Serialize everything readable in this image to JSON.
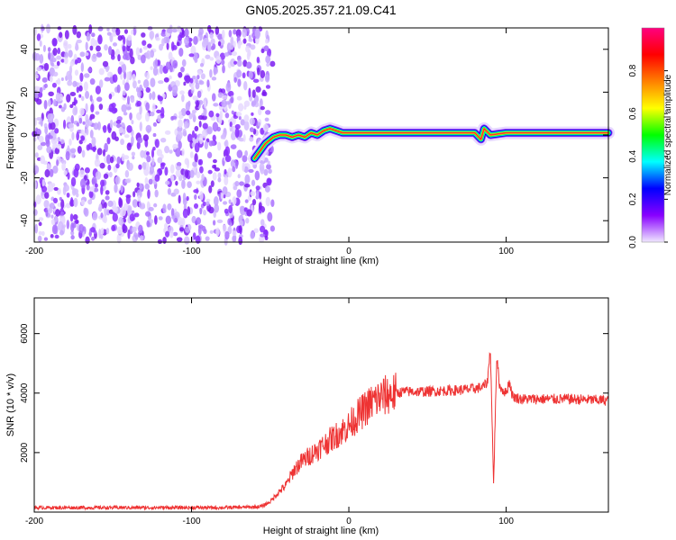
{
  "title": "GN05.2025.357.21.09.C41",
  "chart_data": [
    {
      "type": "heatmap",
      "xlabel": "Height of straight line (km)",
      "ylabel": "Frequency (Hz)",
      "xlim": [
        -200,
        165
      ],
      "ylim": [
        -50,
        50
      ],
      "xticks": [
        -200,
        -100,
        0,
        100
      ],
      "yticks": [
        -40,
        -20,
        0,
        20,
        40
      ],
      "noise_region_x": [
        -200,
        -53
      ],
      "ridge": {
        "x": [
          -60,
          -57,
          -53,
          -48,
          -44,
          -40,
          -36,
          -32,
          -28,
          -24,
          -20,
          -16,
          -12,
          -8,
          -4,
          0,
          10,
          20,
          40,
          60,
          80,
          84,
          86,
          90,
          100,
          110,
          130,
          165
        ],
        "y": [
          -11,
          -8,
          -4,
          -1,
          0,
          0,
          -1,
          0,
          -1,
          1,
          0,
          2,
          3,
          2,
          1,
          1,
          1,
          1,
          1,
          1,
          1,
          -2,
          3,
          0,
          1,
          1,
          1,
          1
        ]
      },
      "colorbar": {
        "label": "Normalized spectral amplitude",
        "range": [
          0,
          1
        ],
        "ticks": [
          "0.0",
          "0.2",
          "0.4",
          "0.6",
          "0.8"
        ],
        "tick_values": [
          0.0,
          0.2,
          0.4,
          0.6,
          0.8
        ],
        "colormap": [
          "#f0e8ff",
          "#8800ff",
          "#0000ff",
          "#00ffff",
          "#00ff00",
          "#ffff00",
          "#ff8000",
          "#ff0000",
          "#ff0080"
        ]
      }
    },
    {
      "type": "line",
      "xlabel": "Height of straight line (km)",
      "ylabel": "SNR (10 * v/v)",
      "xlim": [
        -200,
        165
      ],
      "ylim": [
        0,
        7200
      ],
      "xticks": [
        -200,
        -100,
        0,
        100
      ],
      "yticks": [
        2000,
        4000,
        6000
      ],
      "color": "#ee3333",
      "series": [
        {
          "x": [
            -200,
            -180,
            -160,
            -140,
            -120,
            -100,
            -80,
            -60,
            -55,
            -50,
            -45,
            -40,
            -35,
            -30,
            -25,
            -20,
            -15,
            -10,
            -5,
            0,
            5,
            10,
            15,
            20,
            25,
            30,
            35,
            40,
            50,
            60,
            70,
            80,
            85,
            88,
            90,
            92,
            94,
            96,
            100,
            102,
            104,
            106,
            110,
            120,
            140,
            165
          ],
          "y": [
            150,
            150,
            150,
            150,
            150,
            150,
            150,
            170,
            200,
            350,
            650,
            900,
            1400,
            1700,
            1900,
            2100,
            2300,
            2500,
            2700,
            2900,
            3200,
            3450,
            3700,
            3850,
            3950,
            4000,
            4050,
            4050,
            4050,
            4080,
            4100,
            4150,
            4200,
            4350,
            5500,
            900,
            5200,
            4200,
            4000,
            4400,
            3900,
            3850,
            3800,
            3800,
            3800,
            3750
          ]
        }
      ]
    }
  ]
}
